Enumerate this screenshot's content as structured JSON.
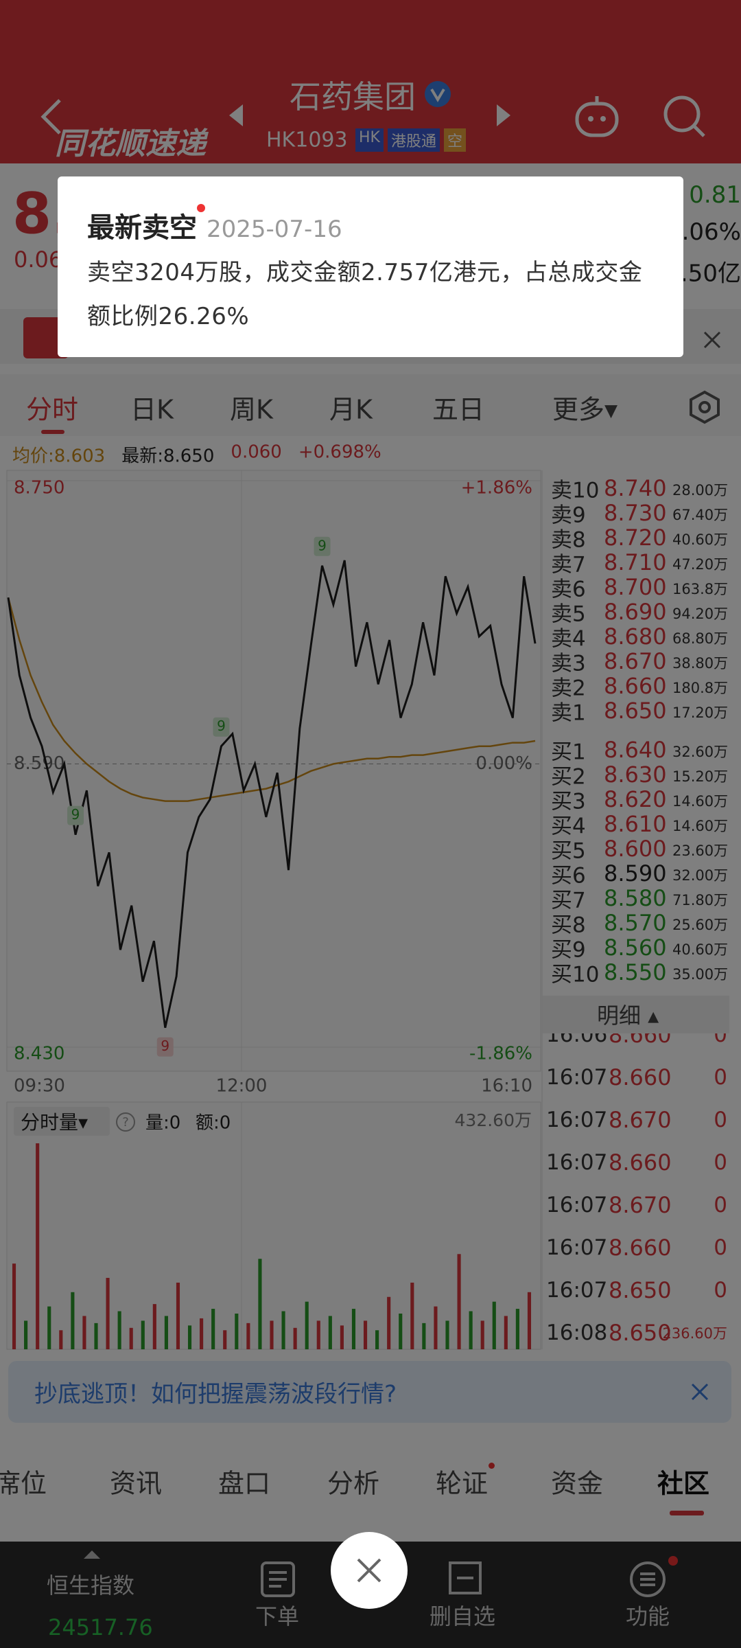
{
  "header": {
    "logo": "同花顺速递",
    "title": "石药集团",
    "code": "HK1093",
    "badges": [
      "HK",
      "港股通",
      "空"
    ]
  },
  "quote": {
    "price": "8.",
    "change": "0.06",
    "right": [
      "0.81",
      ".06%",
      ".50亿"
    ]
  },
  "popup": {
    "title": "最新卖空",
    "date": "2025-07-16",
    "text": "卖空3204万股，成交金额2.757亿港元，占总成交金额比例26.26%"
  },
  "tabs": [
    "分时",
    "日K",
    "周K",
    "月K",
    "五日",
    "更多▾"
  ],
  "info": {
    "avg": "均价:8.603",
    "latest": "最新:8.650",
    "change": "0.060",
    "pct": "+0.698%"
  },
  "chart": {
    "ylim": [
      8.43,
      8.75
    ],
    "yticks": [
      {
        "value": 8.75,
        "label": "8.750"
      },
      {
        "value": 8.59,
        "label": "8.590"
      },
      {
        "value": 8.43,
        "label": "8.430"
      }
    ],
    "pct_labels": [
      "+1.86%",
      "0.00%",
      "-1.86%"
    ],
    "times": [
      "09:30",
      "12:00",
      "16:10"
    ],
    "prices": [
      8.684,
      8.64,
      8.616,
      8.6,
      8.574,
      8.59,
      8.55,
      8.575,
      8.521,
      8.54,
      8.485,
      8.51,
      8.467,
      8.49,
      8.441,
      8.47,
      8.54,
      8.56,
      8.57,
      8.6,
      8.607,
      8.575,
      8.59,
      8.56,
      8.585,
      8.53,
      8.61,
      8.657,
      8.702,
      8.68,
      8.705,
      8.645,
      8.67,
      8.635,
      8.66,
      8.616,
      8.635,
      8.67,
      8.64,
      8.696,
      8.675,
      8.69,
      8.662,
      8.668,
      8.635,
      8.616,
      8.696,
      8.658
    ],
    "avg": [
      8.684,
      8.66,
      8.64,
      8.625,
      8.612,
      8.603,
      8.596,
      8.59,
      8.585,
      8.58,
      8.576,
      8.573,
      8.571,
      8.57,
      8.569,
      8.569,
      8.569,
      8.57,
      8.571,
      8.572,
      8.573,
      8.574,
      8.575,
      8.576,
      8.578,
      8.58,
      8.583,
      8.586,
      8.588,
      8.59,
      8.591,
      8.592,
      8.593,
      8.593,
      8.594,
      8.594,
      8.595,
      8.595,
      8.596,
      8.597,
      8.598,
      8.599,
      8.6,
      8.6,
      8.601,
      8.602,
      8.602,
      8.603
    ],
    "signals": [
      "9",
      "9",
      "9",
      "9"
    ]
  },
  "volume": {
    "title": "分时量▾",
    "vol": "量:0",
    "amt": "额:0",
    "max_label": "432.60万",
    "ylim": [
      0,
      432.6
    ],
    "values": [
      180,
      60,
      432.6,
      90,
      40,
      120,
      70,
      55,
      150,
      80,
      45,
      60,
      95,
      70,
      140,
      50,
      65,
      85,
      40,
      75,
      55,
      190,
      60,
      80,
      45,
      100,
      60,
      70,
      50,
      85,
      60,
      40,
      110,
      75,
      140,
      55,
      90,
      60,
      200,
      80,
      60,
      100,
      70,
      85,
      120
    ]
  },
  "order_book": {
    "sell": [
      {
        "label": "卖10",
        "price": "8.740",
        "vol": "28.00万"
      },
      {
        "label": "卖9",
        "price": "8.730",
        "vol": "67.40万"
      },
      {
        "label": "卖8",
        "price": "8.720",
        "vol": "40.60万"
      },
      {
        "label": "卖7",
        "price": "8.710",
        "vol": "47.20万"
      },
      {
        "label": "卖6",
        "price": "8.700",
        "vol": "163.8万"
      },
      {
        "label": "卖5",
        "price": "8.690",
        "vol": "94.20万"
      },
      {
        "label": "卖4",
        "price": "8.680",
        "vol": "68.80万"
      },
      {
        "label": "卖3",
        "price": "8.670",
        "vol": "38.80万"
      },
      {
        "label": "卖2",
        "price": "8.660",
        "vol": "180.8万"
      },
      {
        "label": "卖1",
        "price": "8.650",
        "vol": "17.20万"
      }
    ],
    "buy": [
      {
        "label": "买1",
        "price": "8.640",
        "vol": "32.60万"
      },
      {
        "label": "买2",
        "price": "8.630",
        "vol": "15.20万"
      },
      {
        "label": "买3",
        "price": "8.620",
        "vol": "14.60万"
      },
      {
        "label": "买4",
        "price": "8.610",
        "vol": "14.60万"
      },
      {
        "label": "买5",
        "price": "8.600",
        "vol": "23.60万"
      },
      {
        "label": "买6",
        "price": "8.590",
        "vol": "32.00万"
      },
      {
        "label": "买7",
        "price": "8.580",
        "vol": "71.80万"
      },
      {
        "label": "买8",
        "price": "8.570",
        "vol": "25.60万"
      },
      {
        "label": "买9",
        "price": "8.560",
        "vol": "40.60万"
      },
      {
        "label": "买10",
        "price": "8.550",
        "vol": "35.00万"
      }
    ]
  },
  "detail": "明细 ▴",
  "trades": [
    [
      "16:06",
      "8.660",
      "0"
    ],
    [
      "16:07",
      "8.660",
      "0"
    ],
    [
      "16:07",
      "8.670",
      "0"
    ],
    [
      "16:07",
      "8.660",
      "0"
    ],
    [
      "16:07",
      "8.670",
      "0"
    ],
    [
      "16:07",
      "8.660",
      "0"
    ],
    [
      "16:07",
      "8.650",
      "0"
    ],
    [
      "16:08",
      "8.650",
      "236.60万"
    ]
  ],
  "ad": "抄底逃顶！如何把握震荡波段行情?",
  "bottom_tabs": [
    "席位",
    "资讯",
    "盘口",
    "分析",
    "轮证",
    "资金",
    "社区"
  ],
  "nav": {
    "index_name": "恒生指数",
    "index_value": "24517.76",
    "items": [
      "下单",
      "删自选",
      "功能"
    ]
  }
}
